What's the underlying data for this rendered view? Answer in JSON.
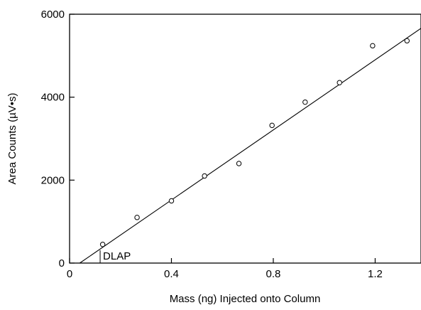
{
  "chart_data": {
    "type": "scatter",
    "xlabel": "Mass (ng) Injected onto Column",
    "ylabel": "Area Counts (µV•s)",
    "xlim": [
      0,
      1.38
    ],
    "ylim": [
      0,
      6000
    ],
    "x_ticks": [
      0,
      0.4,
      0.8,
      1.2
    ],
    "x_tick_labels": [
      "0",
      "0.4",
      "0.8",
      "1.2"
    ],
    "y_ticks": [
      0,
      2000,
      4000,
      6000
    ],
    "y_tick_labels": [
      "0",
      "2000",
      "4000",
      "6000"
    ],
    "grid": false,
    "series": [
      {
        "marker": "open-circle",
        "x": [
          0.13,
          0.265,
          0.4,
          0.53,
          0.665,
          0.795,
          0.925,
          1.06,
          1.19,
          1.325
        ],
        "y": [
          450,
          1100,
          1500,
          2100,
          2400,
          3320,
          3880,
          4350,
          5240,
          5360
        ]
      }
    ],
    "fit_line": {
      "x": [
        0.04,
        1.38
      ],
      "y": [
        0,
        5660
      ]
    },
    "annotations": [
      {
        "text": "DLAP",
        "x": 0.12,
        "y": 0
      }
    ]
  }
}
